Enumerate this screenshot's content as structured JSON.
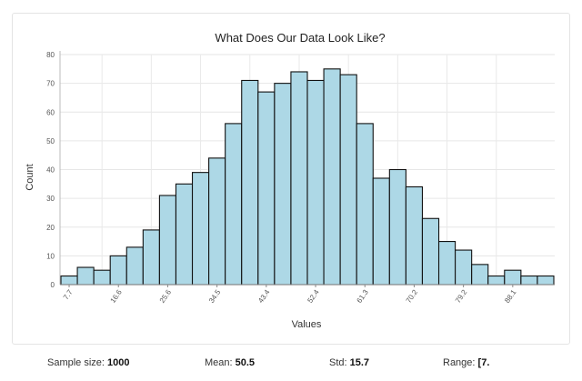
{
  "chart_data": {
    "type": "bar",
    "title": "What Does Our Data Look Like?",
    "xlabel": "Values",
    "ylabel": "Count",
    "ylim": [
      0,
      80
    ],
    "yticks": [
      0,
      10,
      20,
      30,
      40,
      50,
      60,
      70,
      80
    ],
    "xticks": [
      "7.7",
      "16.6",
      "25.6",
      "34.5",
      "43.4",
      "52.4",
      "61.3",
      "70.2",
      "79.2",
      "88.1"
    ],
    "values": [
      3,
      6,
      5,
      10,
      13,
      19,
      31,
      35,
      39,
      44,
      56,
      71,
      67,
      70,
      74,
      71,
      75,
      73,
      56,
      37,
      40,
      34,
      23,
      15,
      12,
      7,
      3,
      5,
      3,
      3
    ],
    "bar_color": "#add8e6",
    "grid": true
  },
  "stats": {
    "sample_label": "Sample size:",
    "sample_value": "1000",
    "mean_label": "Mean:",
    "mean_value": "50.5",
    "std_label": "Std:",
    "std_value": "15.7",
    "range_label": "Range:",
    "range_value": "[7."
  }
}
